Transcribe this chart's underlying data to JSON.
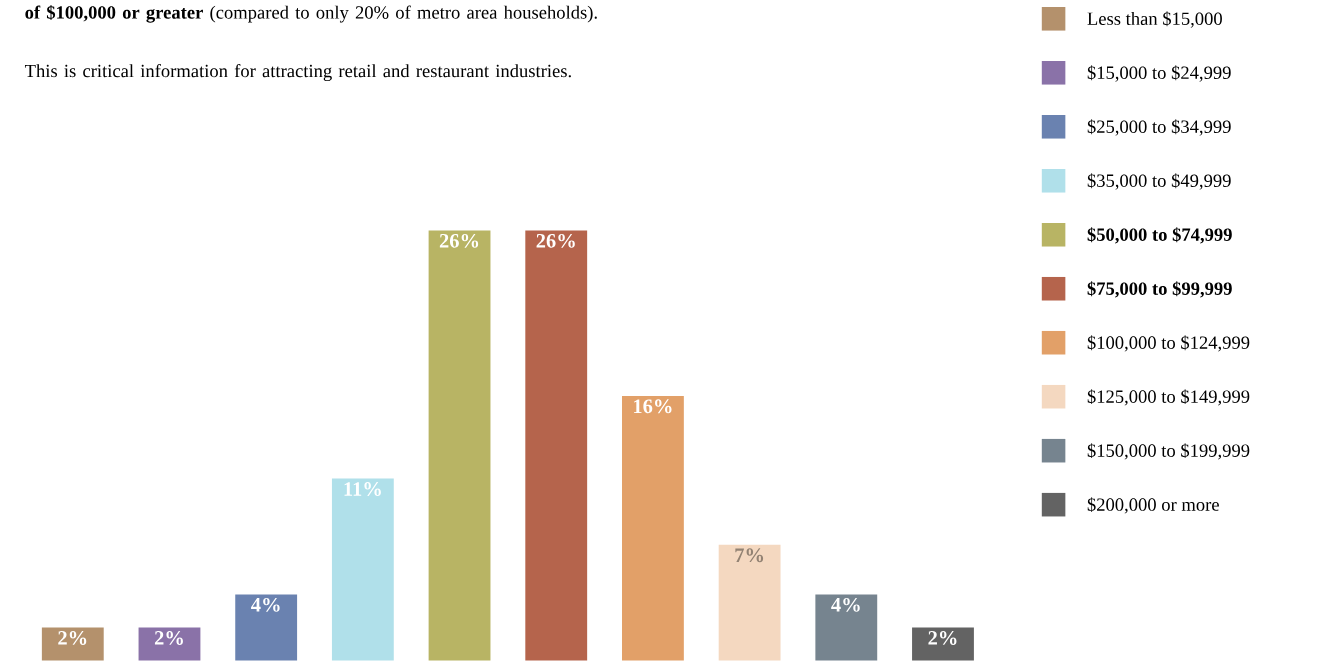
{
  "chart_data": {
    "type": "bar",
    "annotations": [
      "**of $100,000 or greater** (compared to only 20% of metro area households).",
      "This is critical information for attracting retail and restaurant industries."
    ],
    "categories": [
      null,
      null,
      null,
      null,
      null,
      null,
      null,
      null,
      null,
      null
    ],
    "series": [
      {
        "name": "Less than $15,000",
        "color": "#b4916c",
        "values": [
          2,
          null,
          null,
          null,
          null,
          null,
          null,
          null,
          null,
          null
        ],
        "value_labels": [
          "2%",
          null,
          null,
          null,
          null,
          null,
          null,
          null,
          null,
          null
        ]
      },
      {
        "name": "$15,000 to $24,999",
        "color": "#8a72a8",
        "values": [
          null,
          2,
          null,
          null,
          null,
          null,
          null,
          null,
          null,
          null
        ],
        "value_labels": [
          null,
          "2%",
          null,
          null,
          null,
          null,
          null,
          null,
          null,
          null
        ]
      },
      {
        "name": "$25,000 to $34,999",
        "color": "#6a82b0",
        "values": [
          null,
          null,
          4,
          null,
          null,
          null,
          null,
          null,
          null,
          null
        ],
        "value_labels": [
          null,
          null,
          "4%",
          null,
          null,
          null,
          null,
          null,
          null,
          null
        ]
      },
      {
        "name": "$35,000 to $49,999",
        "color": "#b0e0ea",
        "values": [
          null,
          null,
          null,
          11,
          null,
          null,
          null,
          null,
          null,
          null
        ],
        "value_labels": [
          null,
          null,
          null,
          "11%",
          null,
          null,
          null,
          null,
          null,
          null
        ]
      },
      {
        "name": "**$50,000 to $74,999**",
        "color": "#b8b464",
        "values": [
          null,
          null,
          null,
          null,
          26,
          null,
          null,
          null,
          null,
          null
        ],
        "value_labels": [
          null,
          null,
          null,
          null,
          "26%",
          null,
          null,
          null,
          null,
          null
        ]
      },
      {
        "name": "**$75,000 to $99,999**",
        "color": "#b5644c",
        "values": [
          null,
          null,
          null,
          null,
          null,
          26,
          null,
          null,
          null,
          null
        ],
        "value_labels": [
          null,
          null,
          null,
          null,
          null,
          "26%",
          null,
          null,
          null,
          null
        ]
      },
      {
        "name": "$100,000 to $124,999",
        "color": "#e2a068",
        "values": [
          null,
          null,
          null,
          null,
          null,
          null,
          16,
          null,
          null,
          null
        ],
        "value_labels": [
          null,
          null,
          null,
          null,
          null,
          null,
          "16%",
          null,
          null,
          null
        ]
      },
      {
        "name": "$125,000 to $149,999",
        "color": "#f4d8c0",
        "values": [
          null,
          null,
          null,
          null,
          null,
          null,
          null,
          7,
          null,
          null
        ],
        "value_labels": [
          null,
          null,
          null,
          null,
          null,
          null,
          null,
          "7%",
          null,
          null
        ]
      },
      {
        "name": "$150,000 to $199,999",
        "color": "#76848f",
        "values": [
          null,
          null,
          null,
          null,
          null,
          null,
          null,
          null,
          4,
          null
        ],
        "value_labels": [
          null,
          null,
          null,
          null,
          null,
          null,
          null,
          null,
          "4%",
          null
        ]
      },
      {
        "name": "$200,000 or more",
        "color": "#636363",
        "values": [
          null,
          null,
          null,
          null,
          null,
          null,
          null,
          null,
          null,
          2
        ],
        "value_labels": [
          null,
          null,
          null,
          null,
          null,
          null,
          null,
          null,
          null,
          "2%"
        ]
      }
    ],
    "stacked": true,
    "legend": "right"
  }
}
